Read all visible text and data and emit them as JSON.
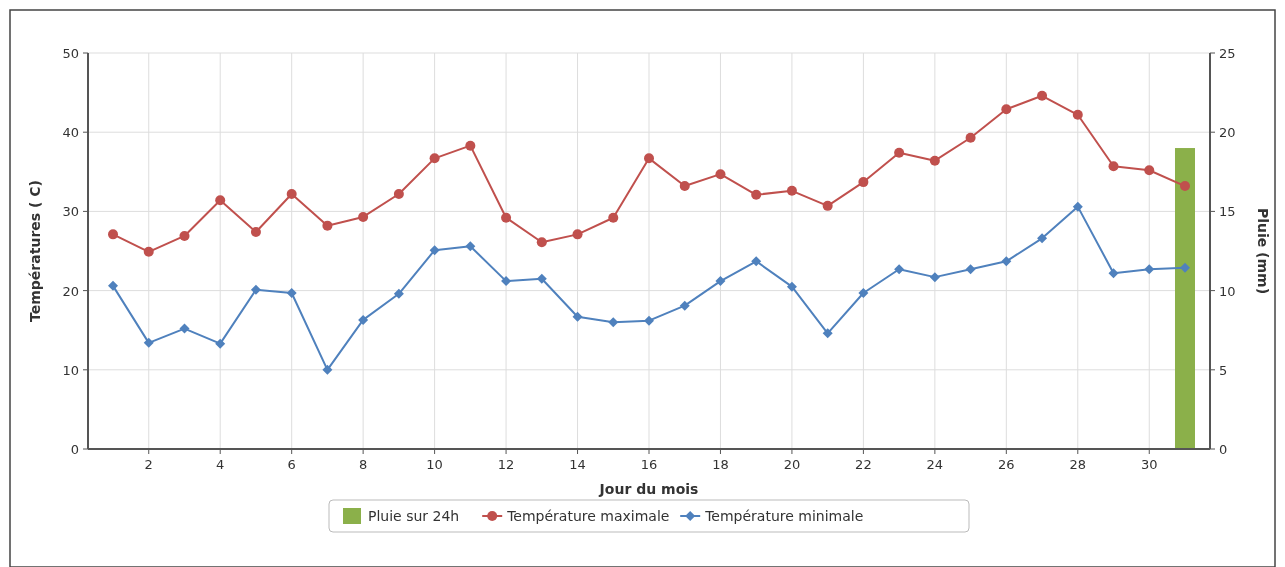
{
  "chart_data": {
    "type": "line",
    "xlabel": "Jour du mois",
    "ylabel": "Températures ( C)",
    "y2label": "Pluie (mm)",
    "x": [
      1,
      2,
      3,
      4,
      5,
      6,
      7,
      8,
      9,
      10,
      11,
      12,
      13,
      14,
      15,
      16,
      17,
      18,
      19,
      20,
      21,
      22,
      23,
      24,
      25,
      26,
      27,
      28,
      29,
      30,
      31
    ],
    "xlim": [
      0.3,
      31.7
    ],
    "xticks": [
      2,
      4,
      6,
      8,
      10,
      12,
      14,
      16,
      18,
      20,
      22,
      24,
      26,
      28,
      30
    ],
    "ylim": [
      0,
      50
    ],
    "yticks": [
      0,
      10,
      20,
      30,
      40,
      50
    ],
    "y2lim": [
      0,
      25
    ],
    "y2ticks": [
      0,
      5,
      10,
      15,
      20,
      25
    ],
    "grid": true,
    "legend": "bottom",
    "line_style": "solid",
    "series": [
      {
        "name": "Pluie sur 24h",
        "type": "bar",
        "axis": "y2",
        "color": "#8bb04a",
        "values": [
          0,
          0,
          0,
          0,
          0,
          0,
          0,
          0,
          0,
          0,
          0,
          0,
          0,
          0,
          0,
          0,
          0,
          0,
          0,
          0,
          0,
          0,
          0,
          0,
          0,
          0,
          0,
          0,
          0,
          0,
          19
        ]
      },
      {
        "name": "Température maximale",
        "marker": "circle",
        "color": "#c0504d",
        "values": [
          27.1,
          24.9,
          26.9,
          31.4,
          27.4,
          32.2,
          28.2,
          29.3,
          32.2,
          36.7,
          38.3,
          29.2,
          26.1,
          27.1,
          29.2,
          36.7,
          33.2,
          34.7,
          32.1,
          32.6,
          30.7,
          33.7,
          37.4,
          36.4,
          39.3,
          42.9,
          44.6,
          42.2,
          35.7,
          35.2,
          33.2
        ]
      },
      {
        "name": "Température minimale",
        "marker": "diamond",
        "color": "#4f81bd",
        "values": [
          20.6,
          13.4,
          15.2,
          13.3,
          20.1,
          19.7,
          10.0,
          16.3,
          19.6,
          25.1,
          25.6,
          21.2,
          21.5,
          16.7,
          16.0,
          16.2,
          18.1,
          21.2,
          23.7,
          20.5,
          14.6,
          19.7,
          22.7,
          21.7,
          22.7,
          23.7,
          26.6,
          30.6,
          22.2,
          22.7,
          22.9
        ]
      }
    ]
  }
}
